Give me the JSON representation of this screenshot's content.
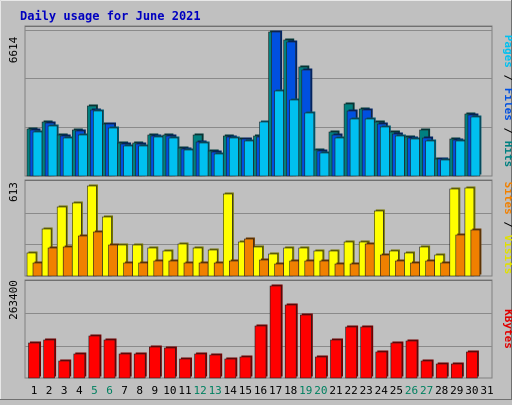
{
  "chart_data": [
    {
      "type": "bar",
      "title": "Daily usage for June 2021",
      "ylabel_parts": [
        {
          "text": "Pages",
          "color": "#00c0f0"
        },
        {
          "text": "Files",
          "color": "#0050e0"
        },
        {
          "text": "Hits",
          "color": "#008080"
        }
      ],
      "ymax_label": "6614",
      "ylim": [
        0,
        6614
      ],
      "categories": [
        "1",
        "2",
        "3",
        "4",
        "5",
        "6",
        "7",
        "8",
        "9",
        "10",
        "11",
        "12",
        "13",
        "14",
        "15",
        "16",
        "17",
        "18",
        "19",
        "20",
        "21",
        "22",
        "23",
        "24",
        "25",
        "26",
        "27",
        "28",
        "29",
        "30",
        "31"
      ],
      "weekend_days": [
        "5",
        "6",
        "12",
        "13",
        "19",
        "20",
        "26",
        "27"
      ],
      "series": [
        {
          "name": "Hits",
          "color": "#008080",
          "values": [
            2150,
            2500,
            1900,
            2100,
            3200,
            2400,
            1500,
            1500,
            1900,
            1900,
            1300,
            1900,
            1150,
            1850,
            1700,
            1850,
            6614,
            6250,
            5000,
            1200,
            2000,
            3300,
            3100,
            2500,
            2000,
            1800,
            2100,
            800,
            1700,
            2850,
            null
          ]
        },
        {
          "name": "Files",
          "color": "#0050e0",
          "values": [
            2100,
            2450,
            1850,
            2050,
            3050,
            2400,
            1450,
            1450,
            1850,
            1850,
            1250,
            1550,
            1100,
            1800,
            1700,
            1800,
            6614,
            6150,
            4850,
            1150,
            1900,
            3000,
            3050,
            2400,
            1950,
            1750,
            1750,
            800,
            1650,
            2800,
            null
          ]
        },
        {
          "name": "Pages",
          "color": "#00c0f0",
          "values": [
            2000,
            2300,
            1750,
            1900,
            3000,
            2200,
            1400,
            1400,
            1800,
            1750,
            1200,
            1500,
            1000,
            1750,
            1600,
            2500,
            3900,
            3500,
            2900,
            1050,
            1750,
            2600,
            2600,
            2250,
            1850,
            1700,
            1600,
            750,
            1600,
            2700,
            null
          ]
        }
      ]
    },
    {
      "type": "bar",
      "ylabel_parts": [
        {
          "text": "Sites",
          "color": "#f08000"
        },
        {
          "text": "Visits",
          "color": "#e0e000"
        }
      ],
      "ymax_label": "613",
      "ylim": [
        0,
        613
      ],
      "categories": [
        "1",
        "2",
        "3",
        "4",
        "5",
        "6",
        "7",
        "8",
        "9",
        "10",
        "11",
        "12",
        "13",
        "14",
        "15",
        "16",
        "17",
        "18",
        "19",
        "20",
        "21",
        "22",
        "23",
        "24",
        "25",
        "26",
        "27",
        "28",
        "29",
        "30",
        "31"
      ],
      "series": [
        {
          "name": "Visits",
          "color": "#ffff00",
          "values": [
            160,
            320,
            470,
            500,
            613,
            400,
            210,
            210,
            190,
            170,
            220,
            190,
            180,
            560,
            230,
            200,
            150,
            190,
            190,
            170,
            170,
            230,
            230,
            440,
            170,
            160,
            200,
            140,
            590,
            600,
            null
          ]
        },
        {
          "name": "Sites",
          "color": "#f08000",
          "values": [
            90,
            190,
            200,
            270,
            300,
            210,
            90,
            90,
            100,
            100,
            90,
            90,
            90,
            100,
            250,
            110,
            80,
            100,
            100,
            100,
            80,
            80,
            220,
            140,
            100,
            90,
            100,
            90,
            280,
            310,
            null
          ]
        }
      ]
    },
    {
      "type": "bar",
      "ylabel_parts": [
        {
          "text": "KBytes",
          "color": "#e00000"
        }
      ],
      "ymax_label": "263400",
      "ylim": [
        0,
        263400
      ],
      "categories": [
        "1",
        "2",
        "3",
        "4",
        "5",
        "6",
        "7",
        "8",
        "9",
        "10",
        "11",
        "12",
        "13",
        "14",
        "15",
        "16",
        "17",
        "18",
        "19",
        "20",
        "21",
        "22",
        "23",
        "24",
        "25",
        "26",
        "27",
        "28",
        "29",
        "30",
        "31"
      ],
      "series": [
        {
          "name": "KBytes",
          "color": "#ff0000",
          "values": [
            100000,
            110000,
            50000,
            70000,
            120000,
            110000,
            70000,
            70000,
            90000,
            85000,
            55000,
            70000,
            65000,
            55000,
            60000,
            150000,
            263400,
            210000,
            180000,
            60000,
            110000,
            145000,
            145000,
            75000,
            100000,
            105000,
            50000,
            40000,
            40000,
            75000,
            null
          ]
        }
      ]
    }
  ]
}
